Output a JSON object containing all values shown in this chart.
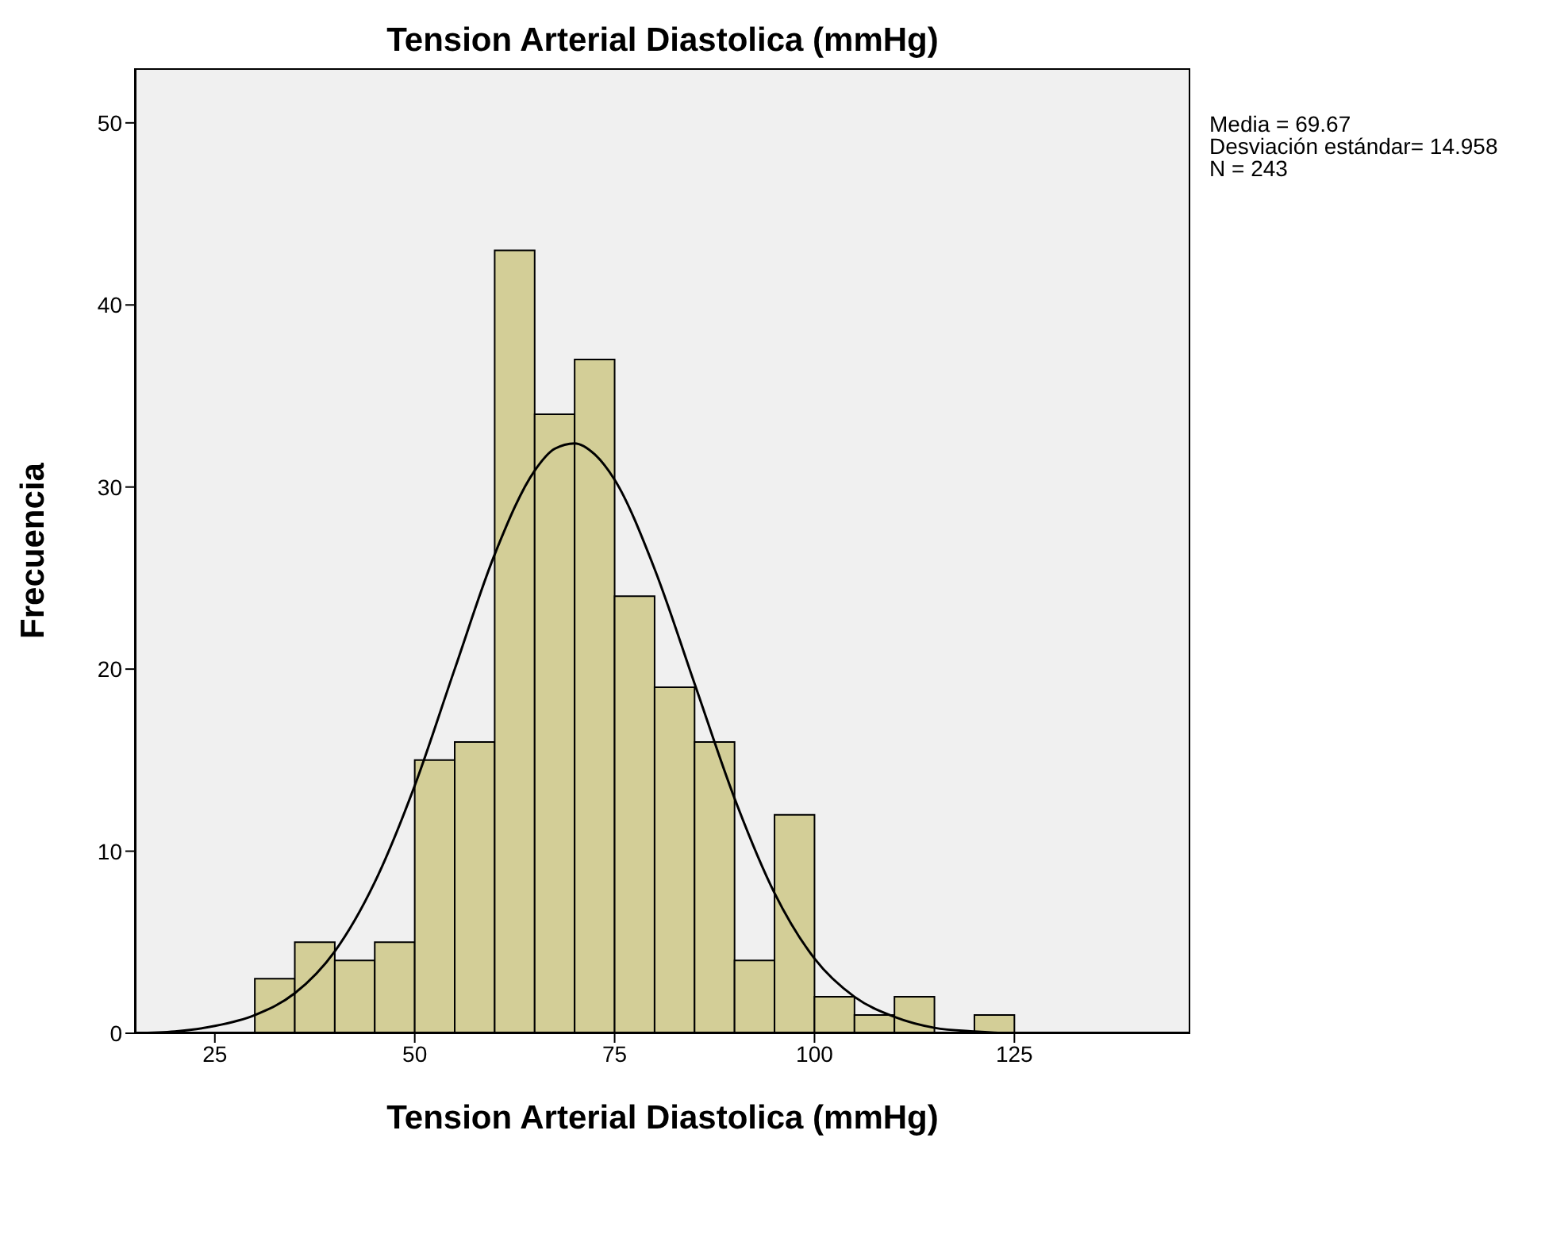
{
  "chart_data": {
    "type": "histogram",
    "title": "Tension Arterial Diastolica (mmHg)",
    "xlabel": "Tension Arterial Diastolica (mmHg)",
    "ylabel": "Frecuencia",
    "annotations": [
      "Media = 69.67",
      "Desviación estándar= 14.958",
      "N = 243"
    ],
    "bins": [
      30,
      35,
      40,
      45,
      50,
      55,
      60,
      65,
      70,
      75,
      80,
      85,
      90,
      95,
      100,
      105,
      110,
      115,
      120,
      125
    ],
    "values": [
      3,
      5,
      4,
      5,
      15,
      16,
      43,
      34,
      37,
      24,
      19,
      16,
      4,
      12,
      2,
      1,
      2,
      0,
      1
    ],
    "color": "#d3ce97",
    "series": [
      {
        "type": "line",
        "color": "#000000",
        "x": [
          15,
          20,
          25,
          30,
          35,
          40,
          45,
          50,
          55,
          60,
          65,
          67.5,
          70,
          72.5,
          75,
          80,
          85,
          90,
          95,
          100,
          105,
          110,
          115,
          120,
          125,
          130,
          147
        ],
        "values": [
          0,
          0.1,
          0.4,
          1,
          2.2,
          4.5,
          8.3,
          13.6,
          20,
          26.3,
          30.9,
          32.1,
          32.4,
          31.8,
          30.4,
          25.5,
          19.2,
          12.9,
          7.7,
          4.1,
          2,
          0.9,
          0.3,
          0.1,
          0,
          0,
          0
        ]
      }
    ],
    "xlim": [
      15,
      147
    ],
    "ylim": [
      0,
      53
    ],
    "xticks": [
      25,
      50,
      75,
      100,
      125
    ],
    "yticks": [
      0,
      10,
      20,
      30,
      40,
      50
    ],
    "legend": false
  }
}
